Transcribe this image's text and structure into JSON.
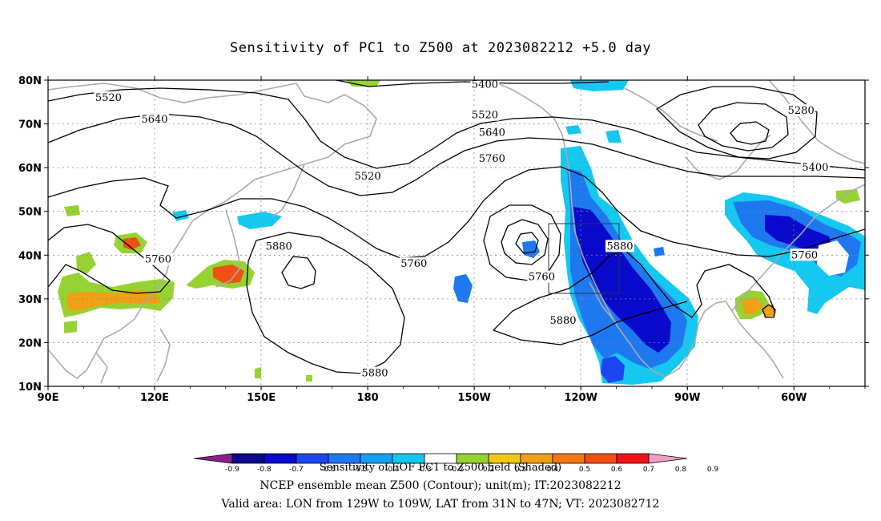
{
  "title": "Sensitivity of PC1 to Z500 at 2023082212 +5.0 day",
  "map": {
    "lat_labels": [
      "80N",
      "70N",
      "60N",
      "50N",
      "40N",
      "30N",
      "20N",
      "10N"
    ],
    "lon_labels": [
      "90E",
      "120E",
      "150E",
      "180",
      "150W",
      "120W",
      "90W",
      "60W"
    ],
    "lon_range_deg_east": [
      90,
      320
    ],
    "lat_range": [
      10,
      80
    ],
    "grid": "dotted",
    "contour_labels": [
      {
        "text": "5520",
        "lon": 107,
        "lat": 76
      },
      {
        "text": "5640",
        "lon": 120,
        "lat": 71
      },
      {
        "text": "5400",
        "lon": 213,
        "lat": 79
      },
      {
        "text": "5520",
        "lon": 213,
        "lat": 72
      },
      {
        "text": "5640",
        "lon": 215,
        "lat": 68
      },
      {
        "text": "5760",
        "lon": 215,
        "lat": 62
      },
      {
        "text": "5520",
        "lon": 180,
        "lat": 58
      },
      {
        "text": "5880",
        "lon": 155,
        "lat": 42
      },
      {
        "text": "5760",
        "lon": 121,
        "lat": 39
      },
      {
        "text": "5760",
        "lon": 193,
        "lat": 38
      },
      {
        "text": "5760",
        "lon": 229,
        "lat": 35
      },
      {
        "text": "5880",
        "lon": 251,
        "lat": 42
      },
      {
        "text": "5880",
        "lon": 182,
        "lat": 13
      },
      {
        "text": "5880",
        "lon": 235,
        "lat": 25
      },
      {
        "text": "5280",
        "lon": 302,
        "lat": 73
      },
      {
        "text": "5400",
        "lon": 306,
        "lat": 60
      },
      {
        "text": "5760",
        "lon": 303,
        "lat": 40
      }
    ],
    "valid_box": {
      "lon_west": -129,
      "lon_east": -109,
      "lat_south": 31,
      "lat_north": 47
    }
  },
  "colorbar": {
    "labels": [
      "-0.9",
      "-0.8",
      "-0.7",
      "-0.6",
      "-0.5",
      "-0.4",
      "-0.3",
      "-0.2",
      "0.2",
      "0.3",
      "0.4",
      "0.5",
      "0.6",
      "0.7",
      "0.8",
      "0.9"
    ],
    "colors": [
      "#8a1f8a",
      "#0a0a8a",
      "#0a0acd",
      "#1e46f0",
      "#1e78f0",
      "#14a0f0",
      "#14c8f0",
      "#ffffff",
      "#96d232",
      "#f0c814",
      "#f0a014",
      "#f07814",
      "#f05014",
      "#f01414",
      "#f0a0c8"
    ]
  },
  "caption": {
    "line1": "Sensitivity of EOF PC1 to Z500 field (Shaded)",
    "line2": "NCEP ensemble mean Z500 (Contour); unit(m); IT:2023082212",
    "line3": "Valid area: LON from 129W to 109W, LAT from 31N to 47N; VT: 2023082712"
  },
  "colors": {
    "contour": "#000000",
    "coast": "#aaaaaa",
    "grid": "#888888",
    "green": "#96d232",
    "orange": "#f0a014",
    "red": "#f05014",
    "lightblue": "#14c8f0",
    "blue": "#1e78f0",
    "darkblue": "#0a0acd"
  }
}
